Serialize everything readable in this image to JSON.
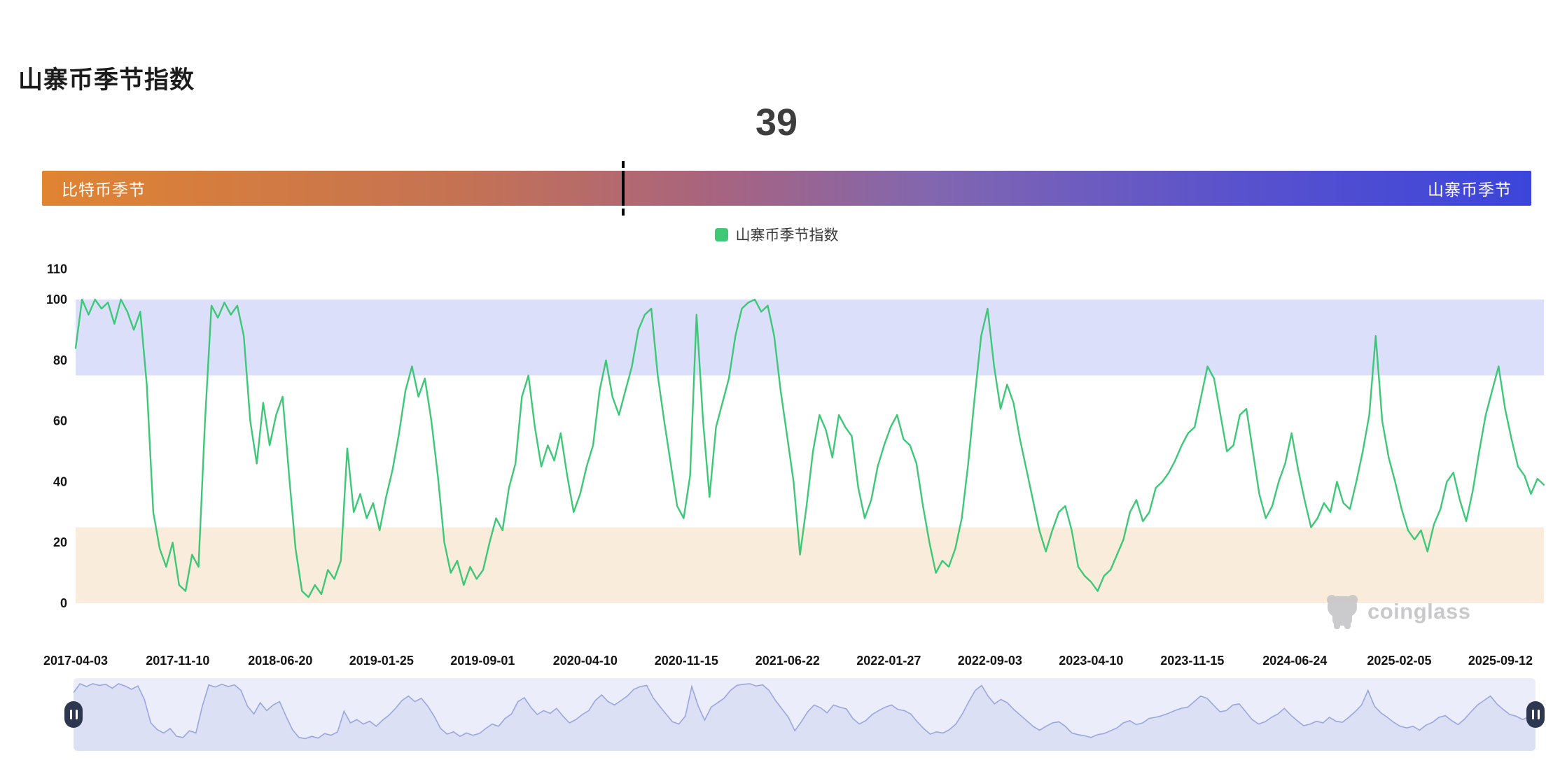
{
  "header": {
    "title": "山寨币季节指数"
  },
  "gauge": {
    "value": 39,
    "value_label": "39",
    "left_label": "比特币季节",
    "right_label": "山寨币季节",
    "gradient_left_color": "#e08431",
    "gradient_right_color": "#3b45da",
    "marker_color": "#000000"
  },
  "legend": {
    "label": "山寨币季节指数",
    "swatch_color": "#3ec878"
  },
  "watermark": {
    "text": "coinglass"
  },
  "chart_data": {
    "type": "line",
    "title": "山寨币季节指数",
    "series": [
      {
        "name": "山寨币季节指数",
        "color": "#3dc878"
      }
    ],
    "current_value": 39,
    "start_date": "2017-04-03",
    "step_days": 14,
    "values": [
      84,
      100,
      95,
      100,
      97,
      99,
      92,
      100,
      96,
      90,
      96,
      72,
      30,
      18,
      12,
      20,
      6,
      4,
      16,
      12,
      60,
      98,
      94,
      99,
      95,
      98,
      88,
      60,
      46,
      66,
      52,
      62,
      68,
      42,
      18,
      4,
      2,
      6,
      3,
      11,
      8,
      14,
      51,
      30,
      36,
      28,
      33,
      24,
      35,
      44,
      56,
      70,
      78,
      68,
      74,
      60,
      42,
      20,
      10,
      14,
      6,
      12,
      8,
      11,
      20,
      28,
      24,
      38,
      46,
      68,
      75,
      58,
      45,
      52,
      47,
      56,
      42,
      30,
      36,
      45,
      52,
      70,
      80,
      68,
      62,
      70,
      78,
      90,
      95,
      97,
      75,
      60,
      46,
      32,
      28,
      42,
      95,
      60,
      35,
      58,
      66,
      74,
      88,
      97,
      99,
      100,
      96,
      98,
      88,
      70,
      55,
      40,
      16,
      32,
      50,
      62,
      57,
      48,
      62,
      58,
      55,
      38,
      28,
      34,
      45,
      52,
      58,
      62,
      54,
      52,
      46,
      32,
      20,
      10,
      14,
      12,
      18,
      28,
      46,
      68,
      88,
      97,
      78,
      64,
      72,
      66,
      54,
      44,
      34,
      24,
      17,
      24,
      30,
      32,
      24,
      12,
      9,
      7,
      4,
      9,
      11,
      16,
      21,
      30,
      34,
      27,
      30,
      38,
      40,
      43,
      47,
      52,
      56,
      58,
      68,
      78,
      74,
      62,
      50,
      52,
      62,
      64,
      50,
      36,
      28,
      32,
      40,
      46,
      56,
      44,
      34,
      25,
      28,
      33,
      30,
      40,
      33,
      31,
      40,
      50,
      62,
      88,
      60,
      48,
      40,
      31,
      24,
      21,
      24,
      17,
      26,
      31,
      40,
      43,
      34,
      27,
      37,
      50,
      62,
      70,
      78,
      64,
      54,
      45,
      42,
      36,
      41,
      39
    ],
    "ylim": [
      0,
      110
    ],
    "y_ticks": [
      110,
      100,
      80,
      60,
      40,
      20,
      0
    ],
    "x_tick_labels": [
      "2017-04-03",
      "2017-11-10",
      "2018-06-20",
      "2019-01-25",
      "2019-09-01",
      "2020-04-10",
      "2020-11-15",
      "2021-06-22",
      "2022-01-27",
      "2022-09-03",
      "2023-04-10",
      "2023-11-15",
      "2024-06-24",
      "2025-02-05",
      "2025-09-12"
    ],
    "bands": [
      {
        "from": 75,
        "to": 100,
        "color": "#dcdffa"
      },
      {
        "from": 0,
        "to": 25,
        "color": "#faecdb"
      }
    ],
    "grid": false,
    "legend_position": "top"
  },
  "navigator": {
    "background_color": "#ebeefa",
    "area_fill_color": "#dbe0f5",
    "line_color": "#9aa6de",
    "handle_color": "#2d3850"
  }
}
